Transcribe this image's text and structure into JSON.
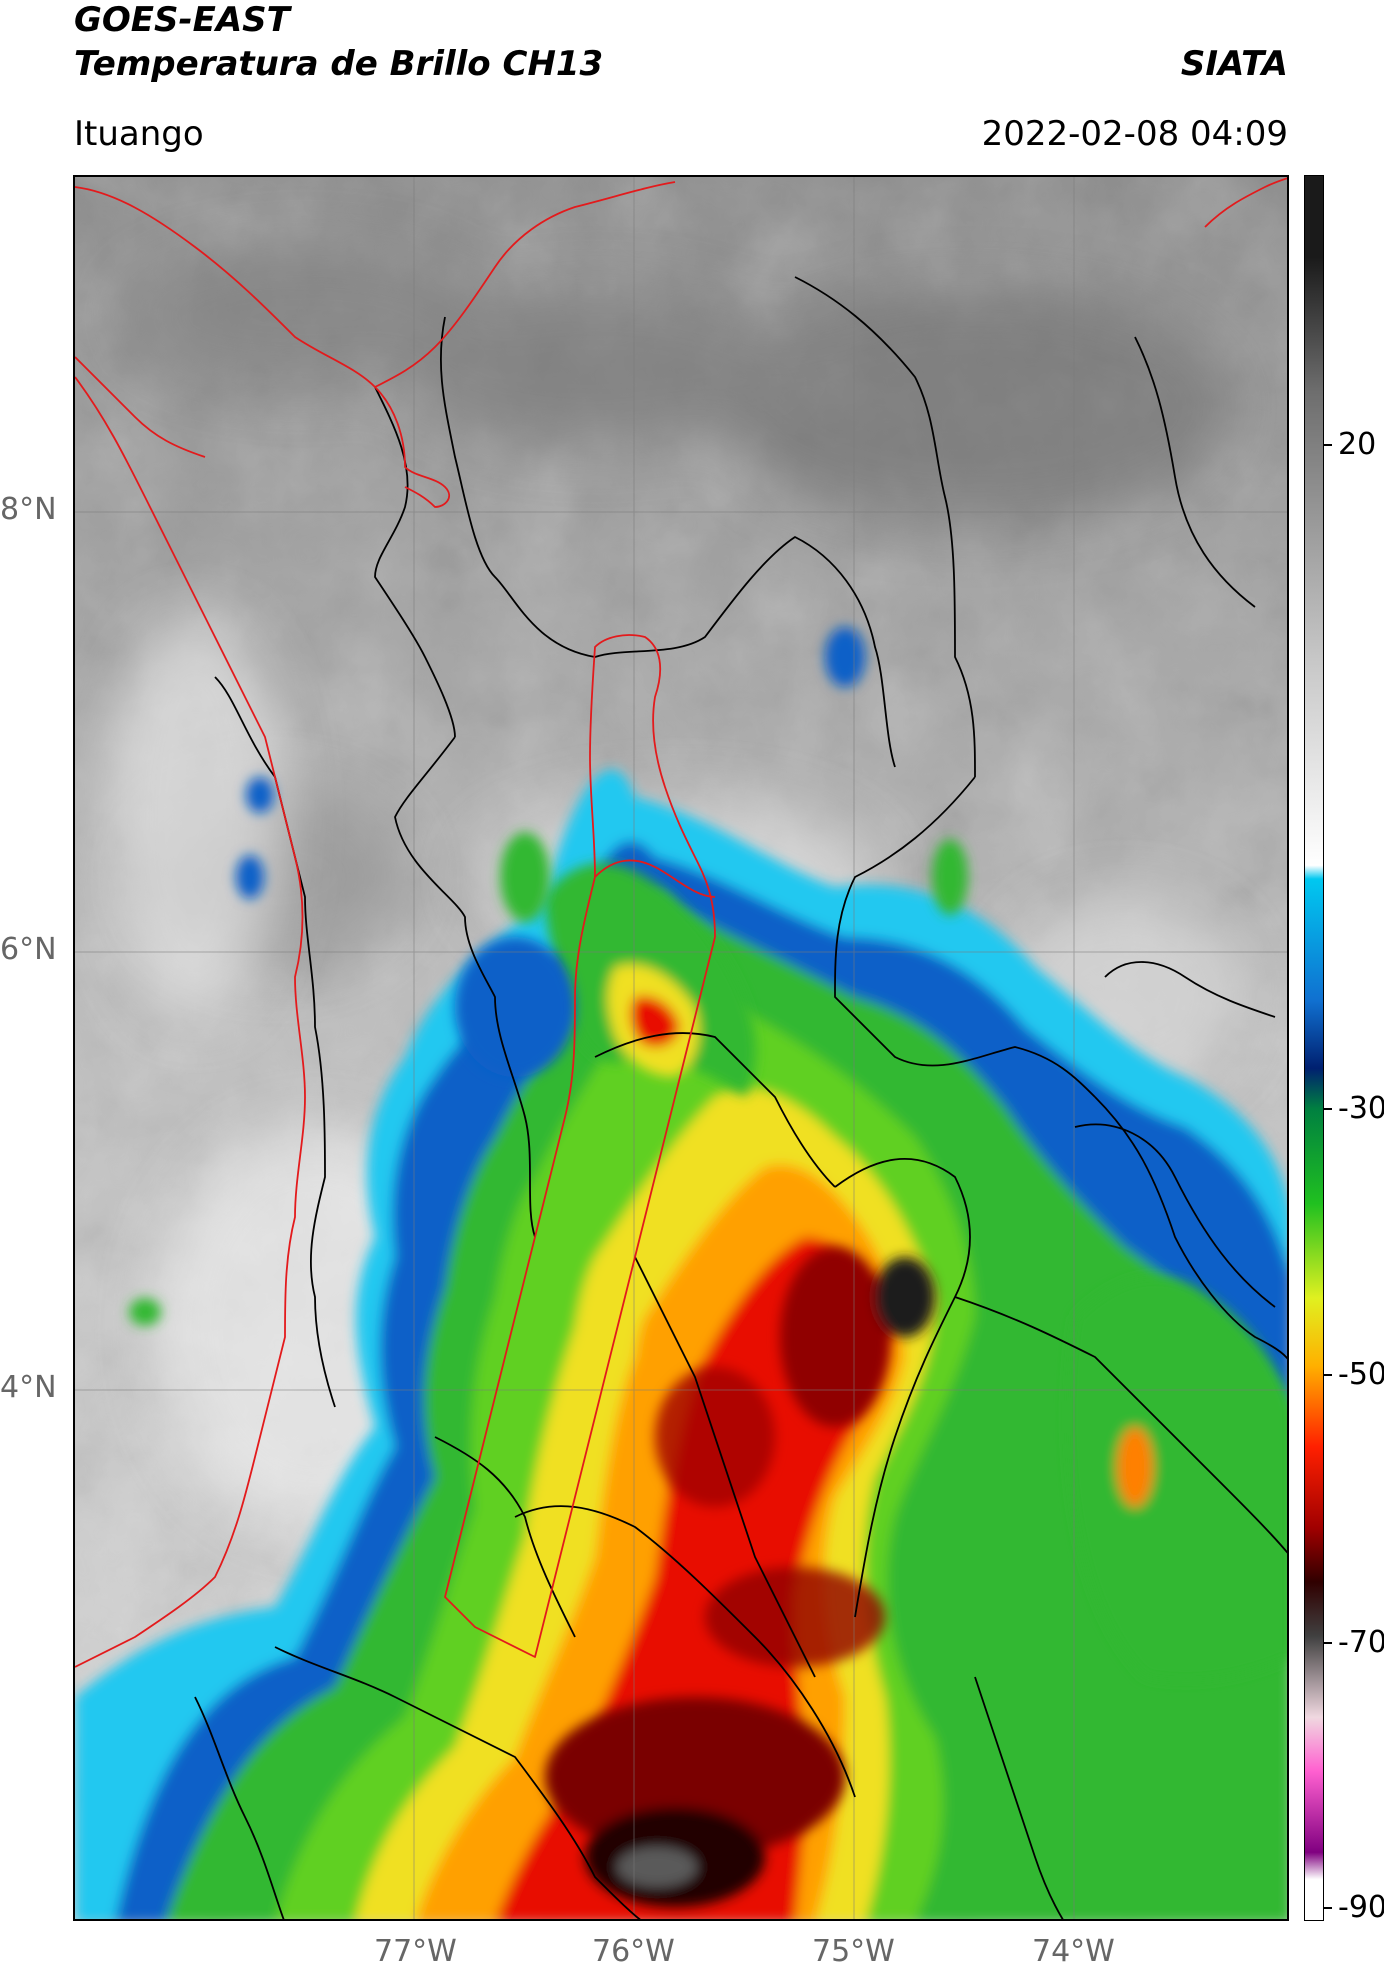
{
  "header": {
    "satellite": "GOES-EAST",
    "product": "Temperatura de Brillo CH13",
    "org": "SIATA",
    "location": "Ituango",
    "datetime": "2022-02-08 04:09"
  },
  "map": {
    "lat_ticks": [
      "8°N",
      "6°N",
      "4°N"
    ],
    "lon_ticks": [
      "77°W",
      "76°W",
      "75°W",
      "74°W"
    ],
    "region_outline_color": "#e31a1c",
    "boundary_color": "#000000"
  },
  "colorbar": {
    "labels": [
      "20",
      "-30",
      "-50",
      "-70",
      "-90"
    ],
    "stops": [
      {
        "v": 30,
        "c": "#1a1a1a"
      },
      {
        "v": 20,
        "c": "#6e6e6e"
      },
      {
        "v": 0,
        "c": "#c8c8c8"
      },
      {
        "v": -15,
        "c": "#ffffff"
      },
      {
        "v": -16,
        "c": "#00c8f0"
      },
      {
        "v": -25,
        "c": "#1070d0"
      },
      {
        "v": -30,
        "c": "#002070"
      },
      {
        "v": -33,
        "c": "#008040"
      },
      {
        "v": -40,
        "c": "#20c020"
      },
      {
        "v": -47,
        "c": "#e0f020"
      },
      {
        "v": -52,
        "c": "#ffb000"
      },
      {
        "v": -58,
        "c": "#ff2000"
      },
      {
        "v": -64,
        "c": "#a00000"
      },
      {
        "v": -68,
        "c": "#300000"
      },
      {
        "v": -72,
        "c": "#404040"
      },
      {
        "v": -78,
        "c": "#f0d8e0"
      },
      {
        "v": -82,
        "c": "#ff60d0"
      },
      {
        "v": -88,
        "c": "#800080"
      },
      {
        "v": -90,
        "c": "#ffffff"
      }
    ]
  }
}
